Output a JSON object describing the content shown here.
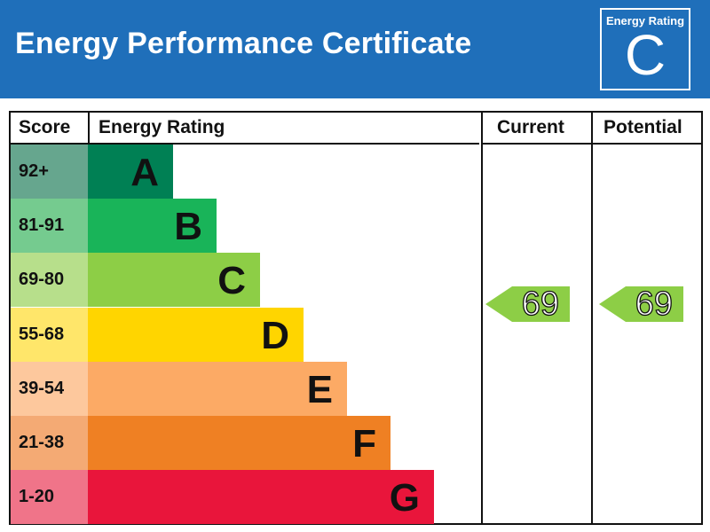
{
  "header": {
    "title": "Energy Performance Certificate",
    "badge_label": "Energy Rating",
    "badge_letter": "C"
  },
  "table": {
    "headers": {
      "score": "Score",
      "rating": "Energy Rating",
      "current": "Current",
      "potential": "Potential"
    },
    "bands": [
      {
        "score": "92+",
        "letter": "A",
        "bar_color": "#008054",
        "score_bg": "#66a68e"
      },
      {
        "score": "81-91",
        "letter": "B",
        "bar_color": "#19b459",
        "score_bg": "#75cb8f"
      },
      {
        "score": "69-80",
        "letter": "C",
        "bar_color": "#8dce46",
        "score_bg": "#b7df8b"
      },
      {
        "score": "55-68",
        "letter": "D",
        "bar_color": "#ffd500",
        "score_bg": "#ffe66a"
      },
      {
        "score": "39-54",
        "letter": "E",
        "bar_color": "#fcaa65",
        "score_bg": "#fdc89d"
      },
      {
        "score": "21-38",
        "letter": "F",
        "bar_color": "#ef8023",
        "score_bg": "#f4aa74"
      },
      {
        "score": "1-20",
        "letter": "G",
        "bar_color": "#e9153b",
        "score_bg": "#f07489"
      }
    ],
    "current": {
      "value": "69",
      "band": "C",
      "color": "#8dce46"
    },
    "potential": {
      "value": "69",
      "band": "C",
      "color": "#8dce46"
    }
  },
  "chart_data": {
    "type": "bar",
    "title": "Energy Performance Certificate",
    "categories": [
      "A",
      "B",
      "C",
      "D",
      "E",
      "F",
      "G"
    ],
    "score_ranges": [
      "92+",
      "81-91",
      "69-80",
      "55-68",
      "39-54",
      "21-38",
      "1-20"
    ],
    "colors": [
      "#008054",
      "#19b459",
      "#8dce46",
      "#ffd500",
      "#fcaa65",
      "#ef8023",
      "#e9153b"
    ],
    "series": [
      {
        "name": "Current",
        "value": 69,
        "band": "C"
      },
      {
        "name": "Potential",
        "value": 69,
        "band": "C"
      }
    ],
    "overall_rating": "C",
    "xlabel": "Energy Rating",
    "ylabel": "Score"
  }
}
